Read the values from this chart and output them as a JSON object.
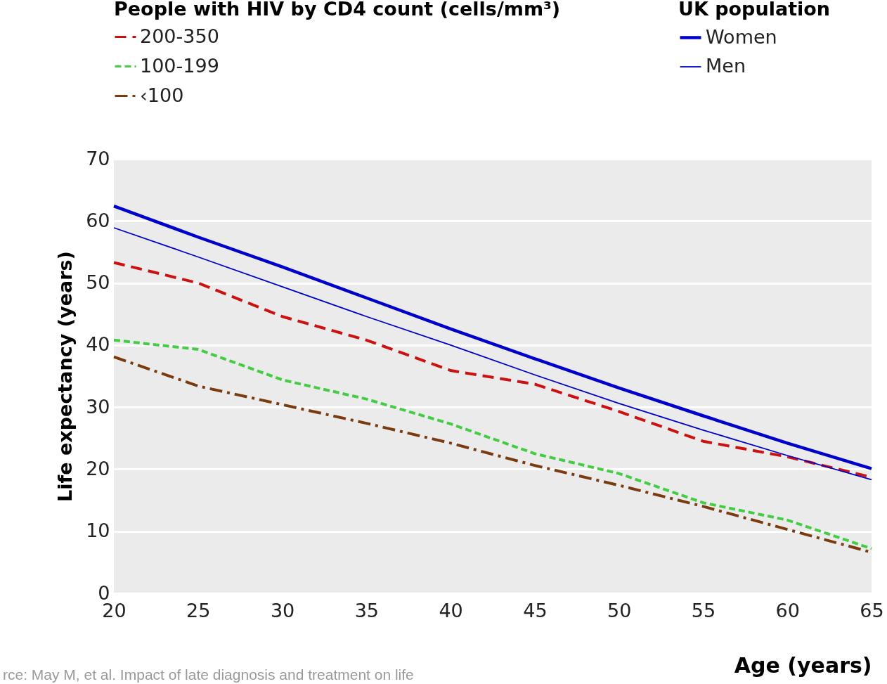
{
  "chart_data": {
    "type": "line",
    "legend_title": "People with HIV by CD4 count (cells/mm³)",
    "xlabel": "Age (years)",
    "ylabel": "Life expectancy (years)",
    "annotations": [
      "UK population",
      "rce: May M, et al. Impact of late diagnosis and treatment on life"
    ],
    "x": [
      20,
      25,
      30,
      35,
      40,
      45,
      50,
      55,
      60,
      65
    ],
    "series": [
      {
        "name": "200-350",
        "color": "#cc1111",
        "line_style": "dashed",
        "values": [
          53.3,
          50,
          44.6,
          40.8,
          35.9,
          33.7,
          29.3,
          24.5,
          22,
          18.7
        ]
      },
      {
        "name": "100-199",
        "color": "#44cc44",
        "line_style": "dotted",
        "values": [
          40.8,
          39.3,
          34.4,
          31.3,
          27.3,
          22.5,
          19.3,
          14.6,
          11.8,
          7.2
        ]
      },
      {
        "name": "‹100",
        "color": "#7a3b10",
        "line_style": "dashdot",
        "values": [
          38.1,
          33.4,
          30.4,
          27.4,
          24.2,
          20.6,
          17.4,
          14,
          10.3,
          6.6
        ]
      },
      {
        "name": "Women",
        "color": "#0000cc",
        "line_style": "solid",
        "values": [
          62.4,
          57.4,
          52.6,
          47.6,
          42.6,
          37.8,
          33.1,
          28.6,
          24.2,
          20.1
        ]
      },
      {
        "name": "Men",
        "color": "#0000cc",
        "line_style": "solid",
        "values": [
          58.9,
          54.2,
          49.4,
          44.6,
          40,
          35.2,
          30.6,
          26.3,
          22.2,
          18.3
        ]
      }
    ],
    "xlim": [
      20,
      65
    ],
    "xticks": [
      20,
      25,
      30,
      35,
      40,
      45,
      50,
      55,
      60,
      65
    ],
    "ylim": [
      0,
      70
    ],
    "yticks": [
      0,
      10,
      20,
      30,
      40,
      50,
      60,
      70
    ],
    "grid": "y",
    "legend": "top"
  }
}
